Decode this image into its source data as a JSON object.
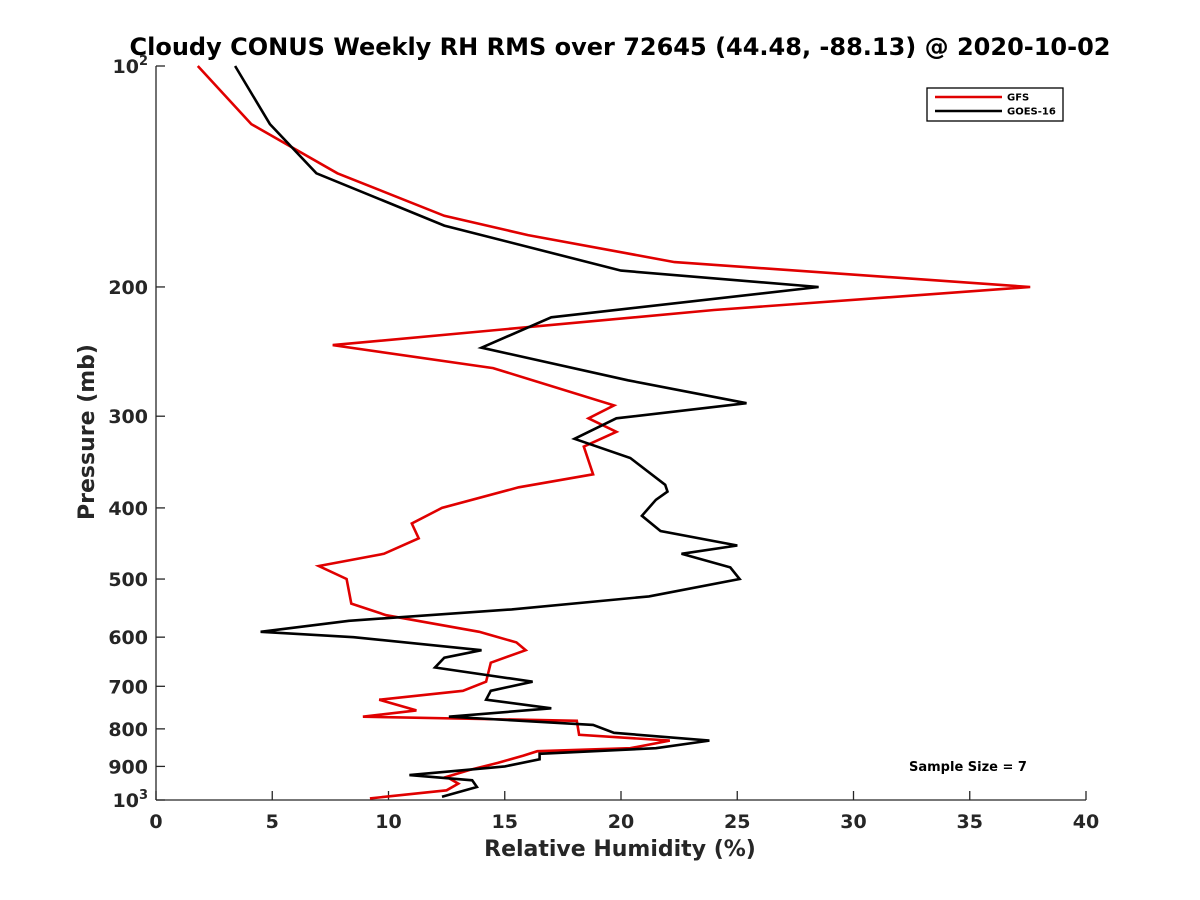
{
  "chart_data": {
    "type": "line",
    "title": "Cloudy CONUS Weekly RH RMS over 72645 (44.48, -88.13) @ 2020-10-02",
    "xlabel": "Relative Humidity (%)",
    "ylabel": "Pressure (mb)",
    "xlim": [
      0,
      40
    ],
    "ylim": [
      100,
      1000
    ],
    "yscale": "log",
    "y_reversed": true,
    "grid": false,
    "legend_position": "top-right",
    "x_ticks": [
      0,
      5,
      10,
      15,
      20,
      25,
      30,
      35,
      40
    ],
    "x_tick_labels": [
      "0",
      "5",
      "10",
      "15",
      "20",
      "25",
      "30",
      "35",
      "40"
    ],
    "y_ticks": [
      100,
      200,
      300,
      400,
      500,
      600,
      700,
      800,
      900,
      1000
    ],
    "y_tick_labels": [
      {
        "base": "10",
        "sup": "2"
      },
      {
        "base": "200",
        "sup": ""
      },
      {
        "base": "300",
        "sup": ""
      },
      {
        "base": "400",
        "sup": ""
      },
      {
        "base": "500",
        "sup": ""
      },
      {
        "base": "600",
        "sup": ""
      },
      {
        "base": "700",
        "sup": ""
      },
      {
        "base": "800",
        "sup": ""
      },
      {
        "base": "900",
        "sup": ""
      },
      {
        "base": "10",
        "sup": "3"
      }
    ],
    "annotation": "Sample Size = 7",
    "series": [
      {
        "name": "GFS",
        "color": "#e00000",
        "points": [
          [
            1.8,
            100
          ],
          [
            4.1,
            120
          ],
          [
            7.8,
            140
          ],
          [
            12.4,
            160
          ],
          [
            16.0,
            170
          ],
          [
            22.3,
            185
          ],
          [
            37.6,
            200
          ],
          [
            24.0,
            215
          ],
          [
            7.6,
            240
          ],
          [
            14.5,
            258
          ],
          [
            19.7,
            290
          ],
          [
            18.6,
            302
          ],
          [
            19.8,
            315
          ],
          [
            18.4,
            330
          ],
          [
            18.8,
            360
          ],
          [
            15.6,
            375
          ],
          [
            12.3,
            400
          ],
          [
            11.0,
            420
          ],
          [
            11.3,
            440
          ],
          [
            9.8,
            462
          ],
          [
            7.0,
            480
          ],
          [
            8.2,
            500
          ],
          [
            8.4,
            540
          ],
          [
            9.9,
            560
          ],
          [
            13.9,
            590
          ],
          [
            15.5,
            610
          ],
          [
            15.9,
            625
          ],
          [
            14.4,
            650
          ],
          [
            14.2,
            690
          ],
          [
            13.2,
            710
          ],
          [
            9.6,
            730
          ],
          [
            11.2,
            755
          ],
          [
            8.9,
            770
          ],
          [
            18.1,
            780
          ],
          [
            18.2,
            815
          ],
          [
            22.1,
            830
          ],
          [
            20.4,
            850
          ],
          [
            16.4,
            858
          ],
          [
            15.8,
            870
          ],
          [
            14.7,
            890
          ],
          [
            13.5,
            910
          ],
          [
            12.5,
            930
          ],
          [
            13.0,
            950
          ],
          [
            12.5,
            970
          ],
          [
            9.2,
            995
          ]
        ]
      },
      {
        "name": "GOES-16",
        "color": "#000000",
        "points": [
          [
            3.4,
            100
          ],
          [
            4.9,
            120
          ],
          [
            6.9,
            140
          ],
          [
            12.4,
            165
          ],
          [
            20.0,
            190
          ],
          [
            28.5,
            200
          ],
          [
            17.0,
            220
          ],
          [
            14.0,
            242
          ],
          [
            20.3,
            268
          ],
          [
            25.4,
            288
          ],
          [
            19.8,
            302
          ],
          [
            18.0,
            322
          ],
          [
            20.4,
            342
          ],
          [
            21.9,
            372
          ],
          [
            22.0,
            380
          ],
          [
            21.5,
            390
          ],
          [
            20.9,
            410
          ],
          [
            21.7,
            430
          ],
          [
            25.0,
            450
          ],
          [
            22.6,
            462
          ],
          [
            24.7,
            482
          ],
          [
            25.1,
            500
          ],
          [
            21.2,
            528
          ],
          [
            15.3,
            550
          ],
          [
            8.3,
            570
          ],
          [
            4.5,
            590
          ],
          [
            8.5,
            600
          ],
          [
            14.0,
            625
          ],
          [
            12.4,
            640
          ],
          [
            12.0,
            660
          ],
          [
            16.2,
            690
          ],
          [
            14.4,
            710
          ],
          [
            14.2,
            730
          ],
          [
            17.0,
            750
          ],
          [
            12.6,
            770
          ],
          [
            18.8,
            790
          ],
          [
            19.7,
            810
          ],
          [
            23.8,
            830
          ],
          [
            21.5,
            850
          ],
          [
            16.5,
            865
          ],
          [
            16.5,
            880
          ],
          [
            15.0,
            900
          ],
          [
            10.9,
            925
          ],
          [
            13.6,
            940
          ],
          [
            13.8,
            960
          ],
          [
            12.3,
            990
          ]
        ]
      }
    ]
  }
}
